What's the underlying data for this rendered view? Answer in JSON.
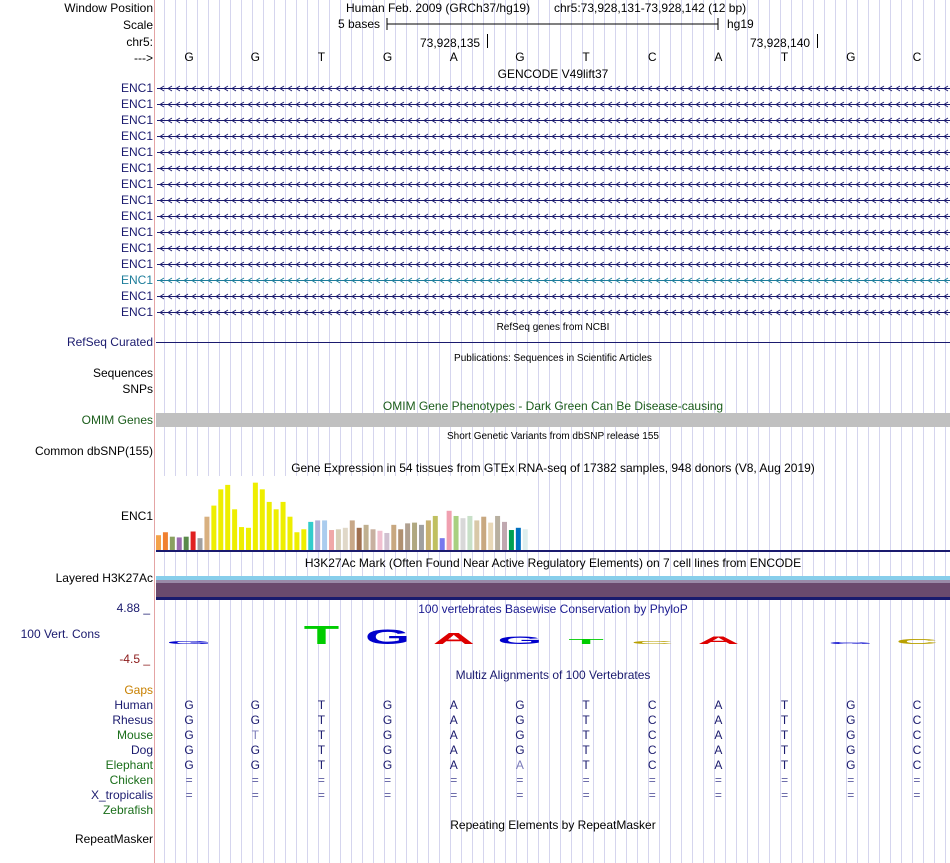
{
  "colors": {
    "label_navy": "#1a1a6e",
    "highlight_teal": "#1c7c9a",
    "grid_line": "#d5d5ee",
    "left_border": "#e4a4a4",
    "omim_green": "#1a5c1a",
    "omim_bar": "#c0c0c0",
    "gap_orange": "#c88000",
    "cons_pos": "#1a1a90",
    "cons_neg": "#8b1a1a",
    "h3k27ac_top": "#87ceeb",
    "h3k27ac_body": "#6b4a6e",
    "h3k27ac_base": "#1a1a6e"
  },
  "header": {
    "window_position_label": "Window Position",
    "assembly": "Human Feb. 2009 (GRCh37/hg19)",
    "position": "chr5:73,928,131-73,928,142 (12 bp)",
    "scale_label": "Scale",
    "scale_bar_text": "5 bases",
    "scale_db": "hg19",
    "chrom_label": "chr5:",
    "coord_1": "73,928,135",
    "coord_2": "73,928,140",
    "strand_label": "--->"
  },
  "sequence": [
    "G",
    "G",
    "T",
    "G",
    "A",
    "G",
    "T",
    "C",
    "A",
    "T",
    "G",
    "C"
  ],
  "gencode": {
    "title": "GENCODE V49lift37",
    "gene_name": "ENC1",
    "row_count": 15,
    "highlighted_row": 12
  },
  "refseq": {
    "title": "RefSeq genes from NCBI",
    "label": "RefSeq Curated"
  },
  "publications": {
    "title": "Publications: Sequences in Scientific Articles",
    "label_sequences": "Sequences",
    "label_snps": "SNPs"
  },
  "omim": {
    "title": "OMIM Gene Phenotypes - Dark Green Can Be Disease-causing",
    "label": "OMIM Genes"
  },
  "dbsnp": {
    "title": "Short Genetic Variants from dbSNP release 155",
    "label": "Common dbSNP(155)"
  },
  "gtex": {
    "title": "Gene Expression in 54 tissues from GTEx RNA-seq of 17382 samples, 948 donors (V8, Aug 2019)",
    "label": "ENC1",
    "max": 100,
    "bars": [
      {
        "v": 20,
        "c": "#f4a24a"
      },
      {
        "v": 24,
        "c": "#f08030"
      },
      {
        "v": 18,
        "c": "#8aa060"
      },
      {
        "v": 17,
        "c": "#9a6ab0"
      },
      {
        "v": 18,
        "c": "#5a8a4a"
      },
      {
        "v": 25,
        "c": "#e02020"
      },
      {
        "v": 16,
        "c": "#a0a0a0"
      },
      {
        "v": 45,
        "c": "#d8b080"
      },
      {
        "v": 60,
        "c": "#eeee00"
      },
      {
        "v": 82,
        "c": "#eeee00"
      },
      {
        "v": 88,
        "c": "#eeee00"
      },
      {
        "v": 55,
        "c": "#eeee00"
      },
      {
        "v": 31,
        "c": "#eeee00"
      },
      {
        "v": 30,
        "c": "#eeee00"
      },
      {
        "v": 91,
        "c": "#eeee00"
      },
      {
        "v": 82,
        "c": "#eeee00"
      },
      {
        "v": 65,
        "c": "#eeee00"
      },
      {
        "v": 55,
        "c": "#eeee00"
      },
      {
        "v": 65,
        "c": "#eeee00"
      },
      {
        "v": 45,
        "c": "#eeee00"
      },
      {
        "v": 24,
        "c": "#eeee00"
      },
      {
        "v": 28,
        "c": "#eeee00"
      },
      {
        "v": 38,
        "c": "#33cccc"
      },
      {
        "v": 40,
        "c": "#b0b0d8"
      },
      {
        "v": 40,
        "c": "#aaccee"
      },
      {
        "v": 27,
        "c": "#f0a8a8"
      },
      {
        "v": 28,
        "c": "#d8d0b8"
      },
      {
        "v": 30,
        "c": "#e0d8c8"
      },
      {
        "v": 40,
        "c": "#c8a888"
      },
      {
        "v": 30,
        "c": "#a07050"
      },
      {
        "v": 34,
        "c": "#c0b090"
      },
      {
        "v": 28,
        "c": "#c8b0a0"
      },
      {
        "v": 26,
        "c": "#f0c0d0"
      },
      {
        "v": 23,
        "c": "#d0c0d0"
      },
      {
        "v": 34,
        "c": "#c8a880"
      },
      {
        "v": 28,
        "c": "#b09070"
      },
      {
        "v": 36,
        "c": "#b0a090"
      },
      {
        "v": 37,
        "c": "#b0a880"
      },
      {
        "v": 34,
        "c": "#a0a0a0"
      },
      {
        "v": 40,
        "c": "#c8b070"
      },
      {
        "v": 46,
        "c": "#c0c060"
      },
      {
        "v": 16,
        "c": "#7777ee"
      },
      {
        "v": 53,
        "c": "#f0a0b0"
      },
      {
        "v": 46,
        "c": "#a8d080"
      },
      {
        "v": 43,
        "c": "#d8d8d8"
      },
      {
        "v": 46,
        "c": "#c8e0c8"
      },
      {
        "v": 40,
        "c": "#d8c8a8"
      },
      {
        "v": 45,
        "c": "#c8a880"
      },
      {
        "v": 37,
        "c": "#e8d8b8"
      },
      {
        "v": 46,
        "c": "#b8b0a0"
      },
      {
        "v": 38,
        "c": "#c0a8b0"
      },
      {
        "v": 27,
        "c": "#00a050"
      },
      {
        "v": 30,
        "c": "#0070c0"
      },
      {
        "v": 28,
        "c": "#ddeeee"
      }
    ]
  },
  "h3k27ac": {
    "title": "H3K27Ac Mark (Often Found Near Active Regulatory Elements) on 7 cell lines from ENCODE",
    "label": "Layered H3K27Ac"
  },
  "conservation": {
    "title": "100 vertebrates Basewise Conservation by PhyloP",
    "label": "100 Vert. Cons",
    "y_max": "4.88 _",
    "y_min": "-4.5 _",
    "scores": [
      {
        "b": "G",
        "v": 0.6,
        "c": "#0000cc"
      },
      {
        "b": "",
        "v": 0,
        "c": "#000000"
      },
      {
        "b": "T",
        "v": 3.2,
        "c": "#00cc00"
      },
      {
        "b": "G",
        "v": 2.6,
        "c": "#0000cc"
      },
      {
        "b": "A",
        "v": 1.9,
        "c": "#dd0000"
      },
      {
        "b": "G",
        "v": 1.3,
        "c": "#0000cc"
      },
      {
        "b": "T",
        "v": 0.9,
        "c": "#00cc00"
      },
      {
        "b": "C",
        "v": 0.5,
        "c": "#b8a000"
      },
      {
        "b": "A",
        "v": 1.4,
        "c": "#dd0000"
      },
      {
        "b": "",
        "v": 0,
        "c": "#000000"
      },
      {
        "b": "G",
        "v": 0.15,
        "c": "#0000cc"
      },
      {
        "b": "C",
        "v": 0.9,
        "c": "#b8a000"
      }
    ]
  },
  "multiz": {
    "title": "Multiz Alignments of 100 Vertebrates",
    "gaps_label": "Gaps",
    "species": [
      {
        "name": "Human",
        "color": "#1a1a6e",
        "seq": [
          "G",
          "G",
          "T",
          "G",
          "A",
          "G",
          "T",
          "C",
          "A",
          "T",
          "G",
          "C"
        ]
      },
      {
        "name": "Rhesus",
        "color": "#1a1a6e",
        "seq": [
          "G",
          "G",
          "T",
          "G",
          "A",
          "G",
          "T",
          "C",
          "A",
          "T",
          "G",
          "C"
        ]
      },
      {
        "name": "Mouse",
        "color": "#1a6e1a",
        "seq": [
          "G",
          "T",
          "T",
          "G",
          "A",
          "G",
          "T",
          "C",
          "A",
          "T",
          "G",
          "C"
        ]
      },
      {
        "name": "Dog",
        "color": "#1a1a6e",
        "seq": [
          "G",
          "G",
          "T",
          "G",
          "A",
          "G",
          "T",
          "C",
          "A",
          "T",
          "G",
          "C"
        ]
      },
      {
        "name": "Elephant",
        "color": "#1a6e1a",
        "seq": [
          "G",
          "G",
          "T",
          "G",
          "A",
          "A",
          "T",
          "C",
          "A",
          "T",
          "G",
          "C"
        ]
      },
      {
        "name": "Chicken",
        "color": "#1a6e1a",
        "seq": [
          "=",
          "=",
          "=",
          "=",
          "=",
          "=",
          "=",
          "=",
          "=",
          "=",
          "=",
          "="
        ]
      },
      {
        "name": "X_tropicalis",
        "color": "#1a1a6e",
        "seq": [
          "=",
          "=",
          "=",
          "=",
          "=",
          "=",
          "=",
          "=",
          "=",
          "=",
          "=",
          "="
        ]
      },
      {
        "name": "Zebrafish",
        "color": "#1a6e1a",
        "seq": [
          "",
          "",
          "",
          "",
          "",
          "",
          "",
          "",
          "",
          "",
          "",
          ""
        ]
      }
    ]
  },
  "repeatmasker": {
    "title": "Repeating Elements by RepeatMasker",
    "label": "RepeatMasker"
  }
}
